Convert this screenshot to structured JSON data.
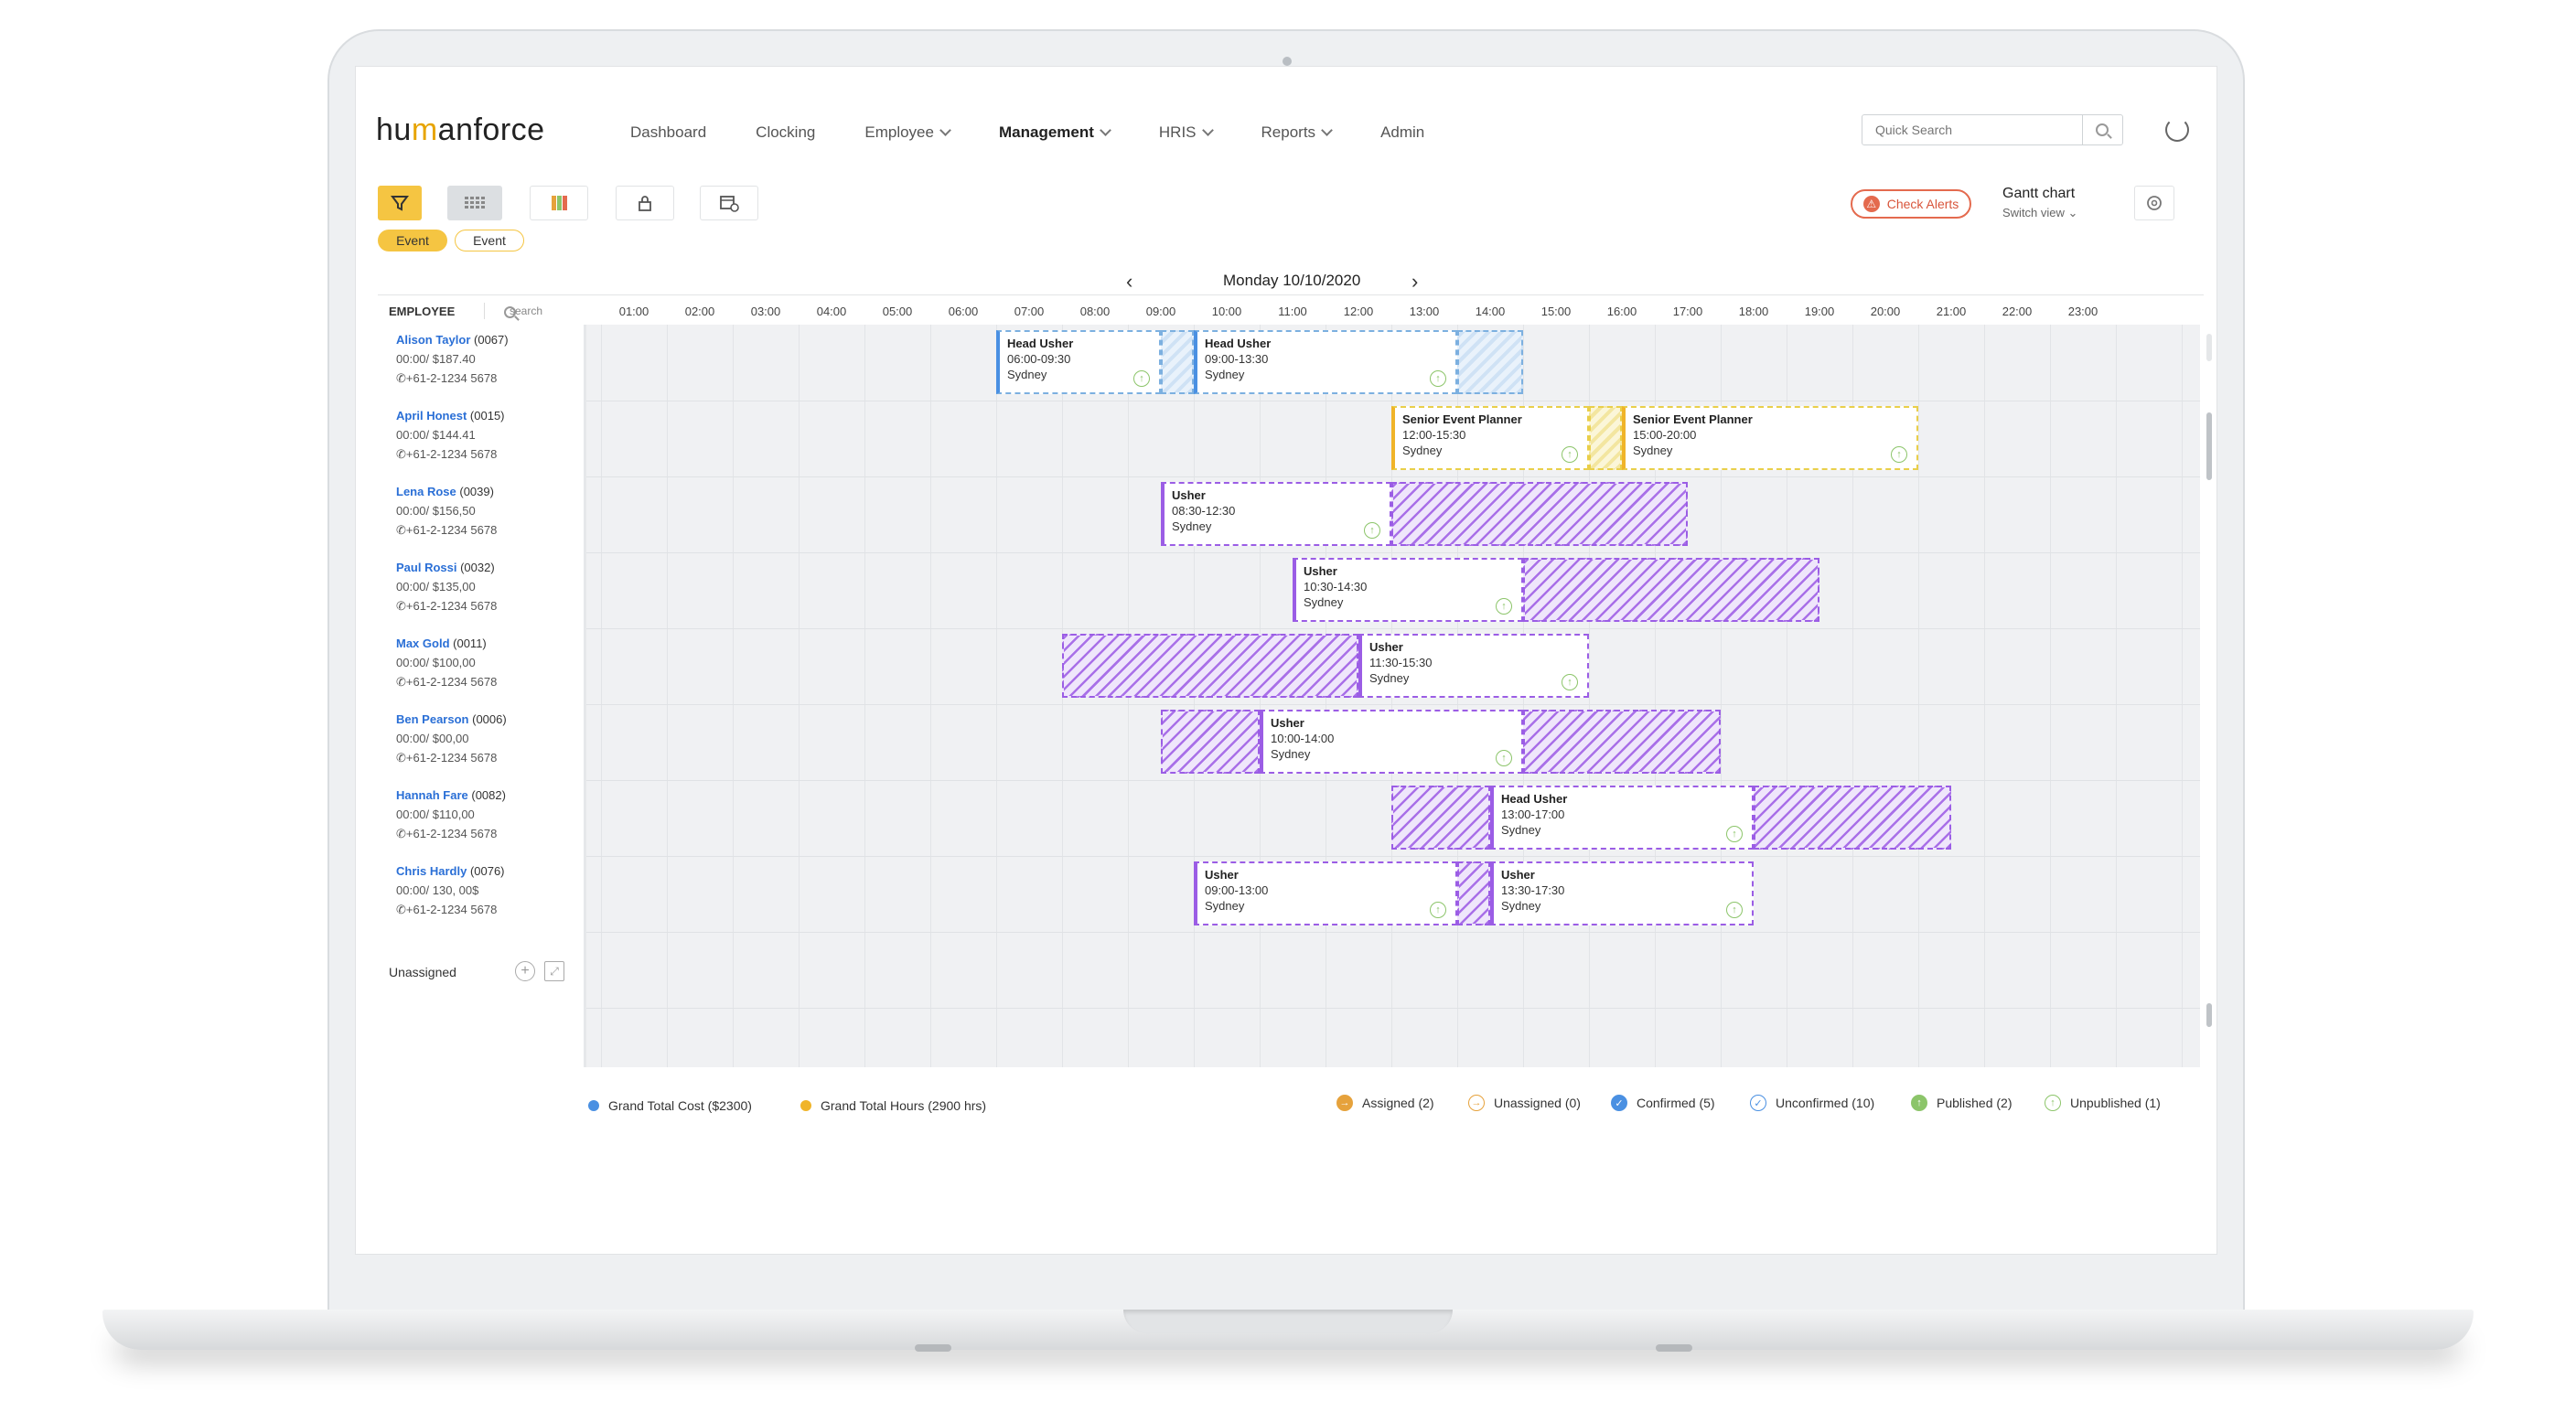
{
  "app": {
    "logo_prefix": "hu",
    "logo_m": "m",
    "logo_suffix": "anforce"
  },
  "nav": [
    {
      "label": "Dashboard",
      "chevron": false,
      "active": false
    },
    {
      "label": "Clocking",
      "chevron": false,
      "active": false
    },
    {
      "label": "Employee",
      "chevron": true,
      "active": false
    },
    {
      "label": "Management",
      "chevron": true,
      "active": true
    },
    {
      "label": "HRIS",
      "chevron": true,
      "active": false
    },
    {
      "label": "Reports",
      "chevron": true,
      "active": false
    },
    {
      "label": "Admin",
      "chevron": false,
      "active": false
    }
  ],
  "search": {
    "placeholder": "Quick Search"
  },
  "toolbar": {
    "check_alerts": "Check Alerts",
    "gantt_title": "Gantt chart",
    "switch_view": "Switch view",
    "chips": [
      "Event",
      "Event"
    ]
  },
  "date": {
    "label": "Monday  10/10/2020"
  },
  "employee_header": {
    "title": "EMPLOYEE",
    "search_placeholder": "search"
  },
  "hours": [
    "01:00",
    "02:00",
    "03:00",
    "04:00",
    "05:00",
    "06:00",
    "07:00",
    "08:00",
    "09:00",
    "10:00",
    "11:00",
    "12:00",
    "13:00",
    "14:00",
    "15:00",
    "16:00",
    "17:00",
    "18:00",
    "19:00",
    "20:00",
    "21:00",
    "22:00",
    "23:00"
  ],
  "employees": [
    {
      "name": "Alison Taylor",
      "id": "(0067)",
      "cost": "00:00/ $187.40",
      "phone": "+61-2-1234 5678"
    },
    {
      "name": "April Honest",
      "id": "(0015)",
      "cost": "00:00/ $144.41",
      "phone": "+61-2-1234 5678"
    },
    {
      "name": "Lena Rose",
      "id": "(0039)",
      "cost": "00:00/ $156,50",
      "phone": "+61-2-1234 5678"
    },
    {
      "name": "Paul Rossi",
      "id": "(0032)",
      "cost": "00:00/ $135,00",
      "phone": "+61-2-1234 5678"
    },
    {
      "name": "Max Gold",
      "id": "(0011)",
      "cost": "00:00/ $100,00",
      "phone": "+61-2-1234 5678"
    },
    {
      "name": "Ben Pearson",
      "id": "(0006)",
      "cost": "00:00/ $00,00",
      "phone": "+61-2-1234 5678"
    },
    {
      "name": "Hannah Fare",
      "id": "(0082)",
      "cost": "00:00/ $110,00",
      "phone": "+61-2-1234 5678"
    },
    {
      "name": "Chris Hardly",
      "id": "(0076)",
      "cost": "00:00/ 130, 00$",
      "phone": "+61-2-1234 5678"
    }
  ],
  "shifts": [
    {
      "title": "Head Usher",
      "time": "06:00-09:30",
      "location": "Sydney"
    },
    {
      "title": "Head Usher",
      "time": "09:00-13:30",
      "location": "Sydney"
    },
    {
      "title": "Senior Event Planner",
      "time": "12:00-15:30",
      "location": "Sydney"
    },
    {
      "title": "Senior Event Planner",
      "time": "15:00-20:00",
      "location": "Sydney"
    },
    {
      "title": "Usher",
      "time": "08:30-12:30",
      "location": "Sydney"
    },
    {
      "title": "Usher",
      "time": "10:30-14:30",
      "location": "Sydney"
    },
    {
      "title": "Usher",
      "time": "11:30-15:30",
      "location": "Sydney"
    },
    {
      "title": "Usher",
      "time": "10:00-14:00",
      "location": "Sydney"
    },
    {
      "title": "Head Usher",
      "time": "13:00-17:00",
      "location": "Sydney"
    },
    {
      "title": "Usher",
      "time": "09:00-13:00",
      "location": "Sydney"
    },
    {
      "title": "Usher",
      "time": "13:30-17:30",
      "location": "Sydney"
    }
  ],
  "unassigned": "Unassigned",
  "legend": {
    "grand_total_cost": "Grand Total Cost ($2300)",
    "grand_total_hours": "Grand Total Hours (2900 hrs)",
    "assigned": "Assigned (2)",
    "unassigned": "Unassigned (0)",
    "confirmed": "Confirmed (5)",
    "unconfirmed": "Unconfirmed (10)",
    "published": "Published (2)",
    "unpublished": "Unpublished (1)"
  },
  "colors": {
    "blue": "#4a90e2",
    "yellow": "#f0b429",
    "purple": "#9b5de5",
    "alert": "#e46a4e",
    "link": "#2a6fd6"
  }
}
